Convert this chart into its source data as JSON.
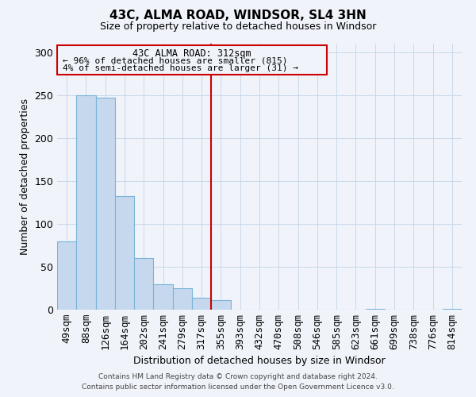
{
  "title": "43C, ALMA ROAD, WINDSOR, SL4 3HN",
  "subtitle": "Size of property relative to detached houses in Windsor",
  "xlabel": "Distribution of detached houses by size in Windsor",
  "ylabel": "Number of detached properties",
  "categories": [
    "49sqm",
    "88sqm",
    "126sqm",
    "164sqm",
    "202sqm",
    "241sqm",
    "279sqm",
    "317sqm",
    "355sqm",
    "393sqm",
    "432sqm",
    "470sqm",
    "508sqm",
    "546sqm",
    "585sqm",
    "623sqm",
    "661sqm",
    "699sqm",
    "738sqm",
    "776sqm",
    "814sqm"
  ],
  "values": [
    80,
    250,
    247,
    132,
    60,
    30,
    25,
    14,
    11,
    0,
    0,
    0,
    0,
    0,
    0,
    0,
    1,
    0,
    0,
    0,
    1
  ],
  "bar_color": "#c5d8ed",
  "bar_edge_color": "#7ab4d8",
  "vline_x": 7,
  "vline_color": "#cc0000",
  "annotation_title": "43C ALMA ROAD: 312sqm",
  "annotation_line1": "← 96% of detached houses are smaller (815)",
  "annotation_line2": "4% of semi-detached houses are larger (31) →",
  "annotation_box_edge": "#cc0000",
  "ylim": [
    0,
    310
  ],
  "yticks": [
    0,
    50,
    100,
    150,
    200,
    250,
    300
  ],
  "footer_line1": "Contains HM Land Registry data © Crown copyright and database right 2024.",
  "footer_line2": "Contains public sector information licensed under the Open Government Licence v3.0.",
  "bg_color": "#f0f4fa",
  "grid_color": "#c8d8e8"
}
